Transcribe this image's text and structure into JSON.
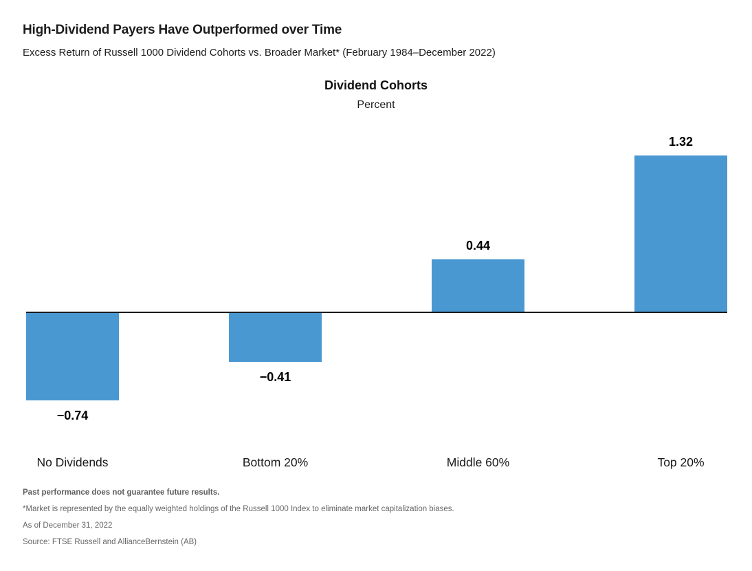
{
  "header": {
    "title": "High-Dividend Payers Have Outperformed over Time",
    "subtitle": "Excess Return of Russell 1000 Dividend Cohorts vs. Broader Market* (February 1984–December 2022)"
  },
  "chart": {
    "title": "Dividend Cohorts",
    "unit_label": "Percent"
  },
  "chart_data": {
    "type": "bar",
    "title": "Dividend Cohorts",
    "ylabel": "Percent",
    "categories": [
      "No Dividends",
      "Bottom 20%",
      "Middle 60%",
      "Top 20%"
    ],
    "values": [
      -0.74,
      -0.41,
      0.44,
      1.32
    ],
    "value_labels": [
      "−0.74",
      "−0.41",
      "0.44",
      "1.32"
    ],
    "bar_color": "#4A98D2",
    "axis_line_color": "#1a1a1a",
    "baseline": 0,
    "ylim": [
      -0.9,
      1.5
    ],
    "grid": false,
    "legend": false,
    "value_labels_shown": true
  },
  "footer": {
    "disclaimer": "Past performance does not guarantee future results.",
    "footnote": "*Market is represented by the equally weighted holdings of the Russell 1000 Index to eliminate market capitalization biases.",
    "as_of": "As of December 31, 2022",
    "source": "Source: FTSE Russell and AllianceBernstein (AB)"
  }
}
